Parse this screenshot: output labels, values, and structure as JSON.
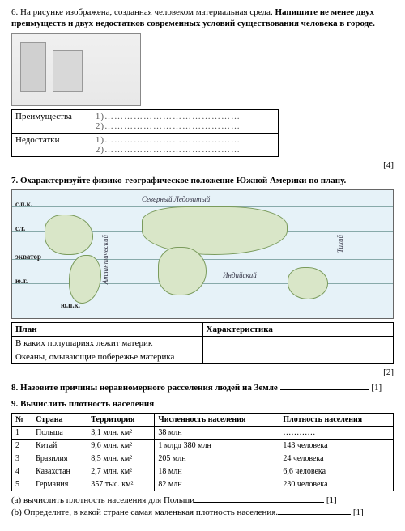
{
  "q6": {
    "prompt_plain": "6. На рисунке изображена, созданная человеком материальная среда. ",
    "prompt_bold": "Напишите не менее двух преимуществ и двух недостатков современных условий существования человека в городе.",
    "row1_label": "Преимущества",
    "row2_label": "Недостатки",
    "line1": "1)……………………………………",
    "line2": "2)……………………………………",
    "score": "[4]"
  },
  "q7": {
    "prompt": "7. Охарактеризуйте физико-географическое положение Южной Америки по плану.",
    "map_labels": {
      "spk": "с.п.к.",
      "st": "с.т.",
      "ekv": "экватор",
      "yut": "ю.т.",
      "yupk": "ю.п.к.",
      "north_ocean": "Северный Ледовитый",
      "atlantic": "Атлантический",
      "indian": "Индийский",
      "pacific": "Тихий"
    },
    "col1": "План",
    "col2": "Характеристика",
    "r1": "В каких полушариях лежит материк",
    "r2": "Океаны, омывающие побережье материка",
    "score": "[2]"
  },
  "q8": {
    "prompt": "8. Назовите  причины неравномерного расселения людей на Земле ",
    "score": "[1]"
  },
  "q9": {
    "prompt": "9. Вычислить плотность  населения",
    "headers": [
      "№",
      "Страна",
      "Территория",
      "Численность населения",
      "Плотность населения"
    ],
    "rows": [
      [
        "1",
        "Польша",
        "3,1 млн. км²",
        "38 млн",
        "…………"
      ],
      [
        "2",
        "Китай",
        "9,6 млн. км²",
        "1 млрд 380 млн",
        "143 человека"
      ],
      [
        "3",
        "Бразилия",
        "8,5 млн. км²",
        "205 млн",
        "24 человека"
      ],
      [
        "4",
        "Казахстан",
        "2,7 млн. км²",
        "18 млн",
        "6,6 человека"
      ],
      [
        "5",
        "Германия",
        "357 тыс. км²",
        "82 млн",
        "230 человека"
      ]
    ],
    "sub_a": "(a) вычислить плотность населения для Польши",
    "sub_b": "(b) Определите, в какой стране самая маленькая плотность населения.",
    "score_a": "[1]",
    "score_b": "[1]"
  }
}
